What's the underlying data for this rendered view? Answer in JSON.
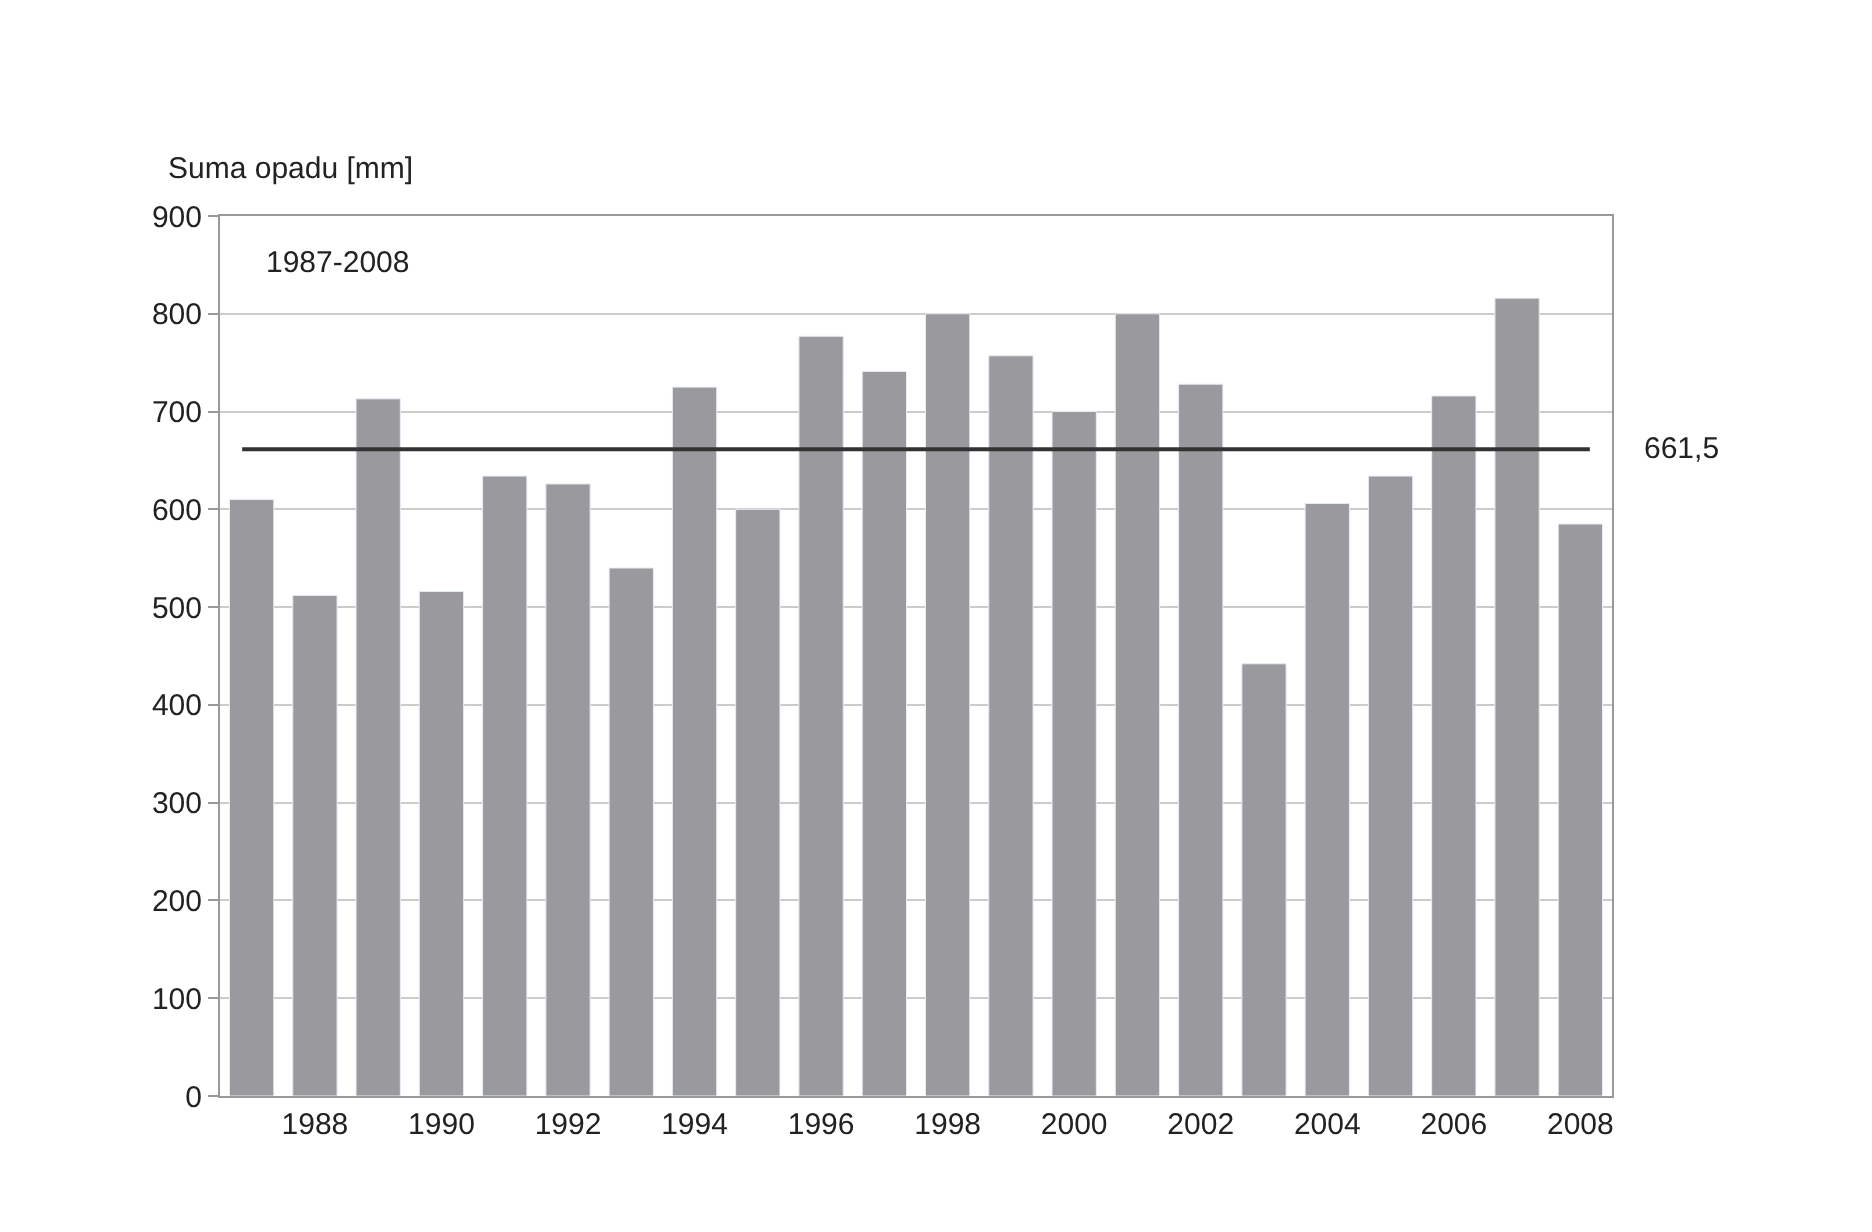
{
  "chart_data": {
    "type": "bar",
    "ylabel": "Suma opadu [mm]",
    "categories": [
      null,
      "1988",
      null,
      "1990",
      null,
      "1992",
      null,
      "1994",
      null,
      "1996",
      null,
      "1998",
      null,
      "2000",
      null,
      "2002",
      null,
      "2004",
      null,
      "2006",
      null,
      "2008"
    ],
    "values": [
      610,
      512,
      713,
      516,
      634,
      626,
      540,
      725,
      600,
      777,
      741,
      800,
      757,
      700,
      800,
      728,
      442,
      606,
      634,
      716,
      816,
      585
    ],
    "color": "#9a9a9e",
    "ylim": [
      0,
      900
    ],
    "yticks": [
      0,
      100,
      200,
      300,
      400,
      500,
      600,
      700,
      800,
      900
    ],
    "grid": "y",
    "ref_lines": [
      {
        "axis": "y",
        "value": 661.5,
        "label": "661,5",
        "color": "#333333"
      }
    ],
    "annotations": [
      "1987-2008"
    ]
  }
}
